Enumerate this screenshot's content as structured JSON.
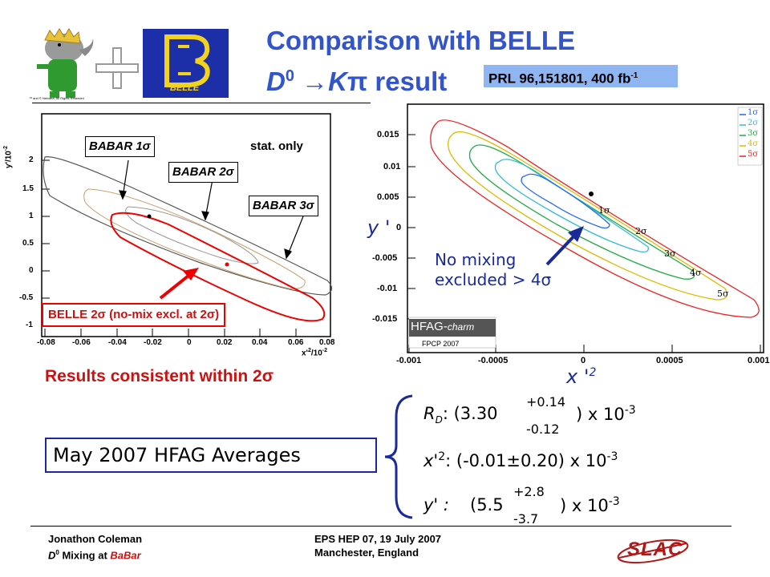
{
  "slide": {
    "title_line1": "Comparison with BELLE",
    "title_d": "D",
    "title_d_sup": "0",
    "title_arrow": "→",
    "title_k": "K",
    "title_pi": "π",
    "title_result": "result",
    "ref_text": "PRL 96,151801, 400 fb",
    "ref_sup": "-1",
    "belle_logo_text": "BELLE",
    "babar_logo_small": "™ and © Nelvana, All Rights Reserved"
  },
  "left_plot": {
    "y_title": "y'/10",
    "y_title_exp": "-2",
    "x_title": "x'",
    "x_title_sup": "2",
    "x_title_rest": "/10",
    "x_title_exp": "-2",
    "y_ticks": [
      "2",
      "1.5",
      "1",
      "0.5",
      "0",
      "-0.5",
      "-1"
    ],
    "x_ticks": [
      "-0.08",
      "-0.06",
      "-0.04",
      "-0.02",
      "0",
      "0.02",
      "0.04",
      "0.06",
      "0.08"
    ],
    "stat_only": "stat. only",
    "babar1": "BABAR 1σ",
    "babar2": "BABAR 2σ",
    "babar3": "BABAR 3σ",
    "belle_label": "BELLE 2σ (no-mix excl. at 2σ)"
  },
  "right_plot": {
    "y_ticks": [
      "0.015",
      "0.01",
      "0.005",
      "0",
      "-0.005",
      "-0.01",
      "-0.015"
    ],
    "x_ticks": [
      "-0.001",
      "-0.0005",
      "0",
      "0.0005",
      "0.001"
    ],
    "legend": [
      {
        "label": "1σ",
        "color": "#2266ff"
      },
      {
        "label": "2σ",
        "color": "#33bbdd"
      },
      {
        "label": "3σ",
        "color": "#22aa44"
      },
      {
        "label": "4σ",
        "color": "#ddbb00"
      },
      {
        "label": "5σ",
        "color": "#ee2222"
      }
    ],
    "contour_labels": [
      "1σ",
      "2σ",
      "3σ",
      "4σ",
      "5σ"
    ],
    "y_axis_label": "y '",
    "x_axis_label": "x '",
    "x_axis_sup": "2",
    "no_mixing_line1": "No mixing",
    "no_mixing_line2": "excluded > 4σ",
    "hfag_logo": "HFAG-",
    "hfag_logo_italic": "charm",
    "hfag_sub": "FPCP 2007"
  },
  "summary": {
    "consistent": "Results consistent within 2σ",
    "averages_box": "May 2007 HFAG Averages",
    "rd_label": "R",
    "rd_sub": "D",
    "rd_value": ": (3.30",
    "rd_plus": "+0.14",
    "rd_minus": "-0.12",
    "rd_tail": ") x 10",
    "rd_exp": "-3",
    "x2_label": "x'",
    "x2_sup": "2",
    "x2_value": ": (-0.01±0.20) x 10",
    "x2_exp": "-3",
    "y_label": "y' :",
    "y_value": "(5.5",
    "y_plus": "+2.8",
    "y_minus": "-3.7",
    "y_tail": ") x 10",
    "y_exp": "-3"
  },
  "footer": {
    "author": "Jonathon Coleman",
    "subtitle_d": "D",
    "subtitle_d_sup": "0",
    "subtitle_rest": " Mixing at ",
    "subtitle_babar": "BaBar",
    "conference": "EPS HEP 07, 19 July 2007",
    "location": "Manchester, England",
    "slac_logo": "SLAC"
  }
}
